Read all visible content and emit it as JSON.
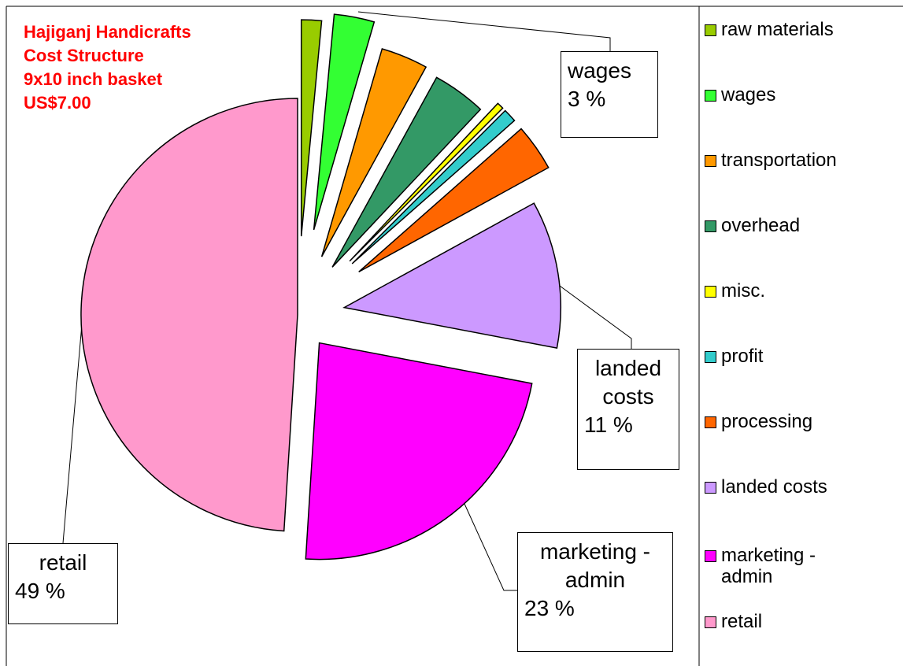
{
  "chart_data": {
    "type": "pie",
    "title": [
      "Hajiganj Handicrafts",
      "Cost Structure",
      "9x10 inch basket",
      "US$7.00"
    ],
    "categories": [
      "raw materials",
      "wages",
      "transportation",
      "overhead",
      "misc.",
      "profit",
      "processing",
      "landed costs",
      "marketing - admin",
      "retail"
    ],
    "values": [
      1.5,
      3,
      3.5,
      4,
      0.5,
      1,
      3.5,
      11,
      23,
      49
    ],
    "value_labels": [
      null,
      "3 %",
      null,
      null,
      null,
      null,
      null,
      "11 %",
      "23 %",
      "49 %"
    ],
    "colors": [
      "#99cc00",
      "#33ff33",
      "#ff9900",
      "#339966",
      "#ffff00",
      "#33cccc",
      "#ff6600",
      "#cc99ff",
      "#ff00ff",
      "#ff99cc"
    ],
    "legend": "right"
  }
}
